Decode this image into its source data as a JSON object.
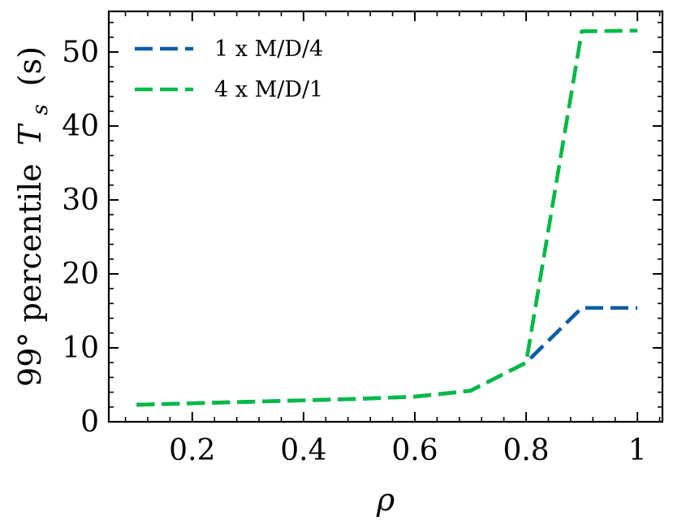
{
  "chart_data": {
    "type": "line",
    "title": "",
    "xlabel": "ρ",
    "ylabel_prefix": "99° percentile",
    "ylabel_var": "T",
    "ylabel_sub": "s",
    "ylabel_suffix": "(s)",
    "xlim": [
      0.05,
      1.045
    ],
    "ylim": [
      0,
      55.5
    ],
    "xticks": [
      0.2,
      0.4,
      0.6,
      0.8,
      1.0
    ],
    "xtick_labels": [
      "0.2",
      "0.4",
      "0.6",
      "0.8",
      "1"
    ],
    "yticks": [
      0,
      10,
      20,
      30,
      40,
      50
    ],
    "ytick_labels": [
      "0",
      "10",
      "20",
      "30",
      "40",
      "50"
    ],
    "x_minor_step": 0.04,
    "y_minor_step": 2,
    "grid": false,
    "legend_position": "top-left",
    "x": [
      0.1,
      0.2,
      0.3,
      0.4,
      0.5,
      0.6,
      0.7,
      0.8,
      0.9,
      1.0
    ],
    "series": [
      {
        "name": "1 x M/D/4",
        "color": "#0C5DA5",
        "values": [
          2.3,
          2.5,
          2.7,
          2.9,
          3.1,
          3.4,
          4.2,
          8.0,
          15.4,
          15.4
        ]
      },
      {
        "name": "4 x M/D/1",
        "color": "#00B945",
        "values": [
          2.3,
          2.5,
          2.7,
          2.9,
          3.1,
          3.4,
          4.2,
          8.0,
          52.8,
          52.9
        ]
      }
    ]
  }
}
